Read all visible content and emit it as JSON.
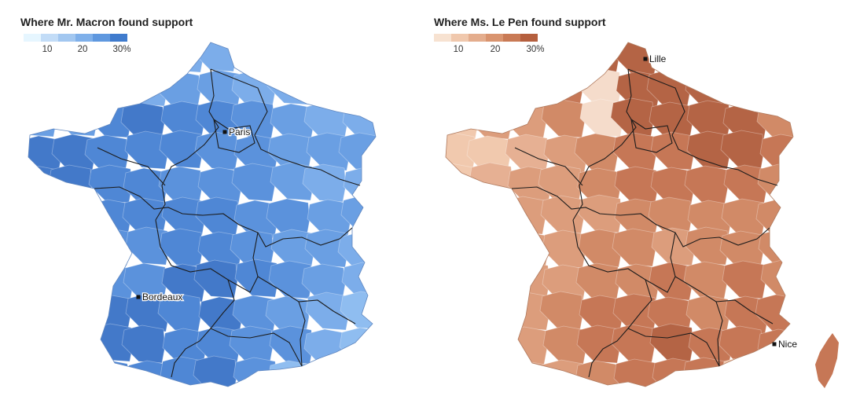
{
  "maps": [
    {
      "title": "Where Mr. Macron found support",
      "legend": {
        "colors": [
          "#e6f6ff",
          "#c2dcf7",
          "#a2c7f0",
          "#7fb0ea",
          "#5f98df",
          "#3f7bcd"
        ],
        "ticks": [
          "10",
          "20",
          "30%"
        ]
      },
      "region_colors": [
        "#8fbdf0",
        "#7cadea",
        "#6a9fe3",
        "#5b92dc",
        "#4f87d5",
        "#4379c9",
        "#a8cbf3"
      ],
      "cities": [
        {
          "name": "Paris"
        },
        {
          "name": "Bordeaux"
        }
      ]
    },
    {
      "title": "Where Ms. Le Pen found support",
      "legend": {
        "colors": [
          "#f7e2d1",
          "#f0c8ad",
          "#e4ad8d",
          "#d9946f",
          "#c97a55",
          "#b55f3e"
        ],
        "ticks": [
          "10",
          "20",
          "30%"
        ]
      },
      "region_colors": [
        "#f1c9ae",
        "#e6b093",
        "#dc9d7c",
        "#d18a67",
        "#c67756",
        "#b46445",
        "#f5dccb"
      ],
      "cities": [
        {
          "name": "Lille"
        },
        {
          "name": "Nice"
        }
      ]
    }
  ]
}
